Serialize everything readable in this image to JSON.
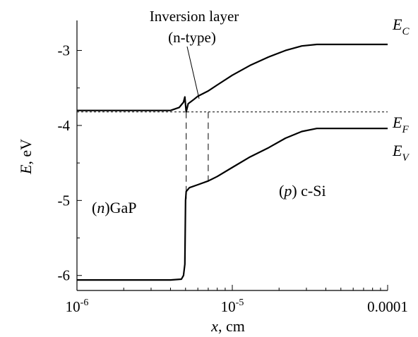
{
  "chart_data": {
    "type": "line",
    "x_scale": "log",
    "xlim": [
      1e-06,
      0.0001
    ],
    "ylim": [
      -6.2,
      -2.6
    ],
    "x_ticks": [
      {
        "value": 1e-06,
        "base": "10",
        "exp": "-6"
      },
      {
        "value": 1e-05,
        "base": "10",
        "exp": "-5"
      },
      {
        "value": 0.0001,
        "label": "0.0001"
      }
    ],
    "y_ticks": [
      {
        "value": -3,
        "label": "-3"
      },
      {
        "value": -4,
        "label": "-4"
      },
      {
        "value": -5,
        "label": "-5"
      },
      {
        "value": -6,
        "label": "-6"
      }
    ],
    "xlabel": {
      "italic": "x",
      "rest": ", cm"
    },
    "ylabel": {
      "italic": "E",
      "rest": ", eV"
    },
    "grid": false,
    "series": [
      {
        "id": "EC",
        "label": {
          "main": "E",
          "sub": "C"
        },
        "x": [
          1e-06,
          2e-06,
          3e-06,
          4e-06,
          4.55e-06,
          4.85e-06,
          4.95e-06,
          5.05e-06,
          5.2e-06,
          5.6e-06,
          6e-06,
          7e-06,
          8e-06,
          1e-05,
          1.3e-05,
          1.7e-05,
          2.2e-05,
          2.8e-05,
          3.5e-05,
          4e-05,
          5e-05,
          7e-05,
          0.0001
        ],
        "y": [
          -3.8,
          -3.8,
          -3.8,
          -3.8,
          -3.76,
          -3.69,
          -3.62,
          -3.82,
          -3.71,
          -3.66,
          -3.61,
          -3.54,
          -3.46,
          -3.33,
          -3.2,
          -3.09,
          -3.0,
          -2.94,
          -2.92,
          -2.92,
          -2.92,
          -2.92,
          -2.92
        ]
      },
      {
        "id": "EV",
        "label": {
          "main": "E",
          "sub": "V"
        },
        "x": [
          1e-06,
          2e-06,
          3e-06,
          4e-06,
          4.7e-06,
          4.85e-06,
          4.95e-06,
          5e-06,
          5.05e-06,
          5.3e-06,
          6e-06,
          7e-06,
          8e-06,
          1e-05,
          1.3e-05,
          1.7e-05,
          2.2e-05,
          2.8e-05,
          3.5e-05,
          4e-05,
          5e-05,
          7e-05,
          0.0001
        ],
        "y": [
          -6.06,
          -6.06,
          -6.06,
          -6.06,
          -6.05,
          -6.0,
          -5.85,
          -5.0,
          -4.88,
          -4.83,
          -4.79,
          -4.74,
          -4.68,
          -4.56,
          -4.42,
          -4.3,
          -4.17,
          -4.08,
          -4.04,
          -4.04,
          -4.04,
          -4.04,
          -4.04
        ]
      },
      {
        "id": "EF",
        "label": {
          "main": "E",
          "sub": "F"
        },
        "style": "dashed",
        "x": [
          1e-06,
          0.0001
        ],
        "y": [
          -3.82,
          -3.82
        ]
      }
    ],
    "vertical_markers": [
      {
        "x": 5.05e-06,
        "y_from": -3.82,
        "y_to": -4.98
      },
      {
        "x": 7e-06,
        "y_from": -3.82,
        "y_to": -4.76
      }
    ],
    "annotations": {
      "inversion_line1": "Inversion layer",
      "inversion_line2": "(n-type)",
      "gap_region": {
        "italic": "n",
        "rest": "GaP"
      },
      "si_region": {
        "italic": "p",
        "rest": "c-Si"
      }
    }
  }
}
